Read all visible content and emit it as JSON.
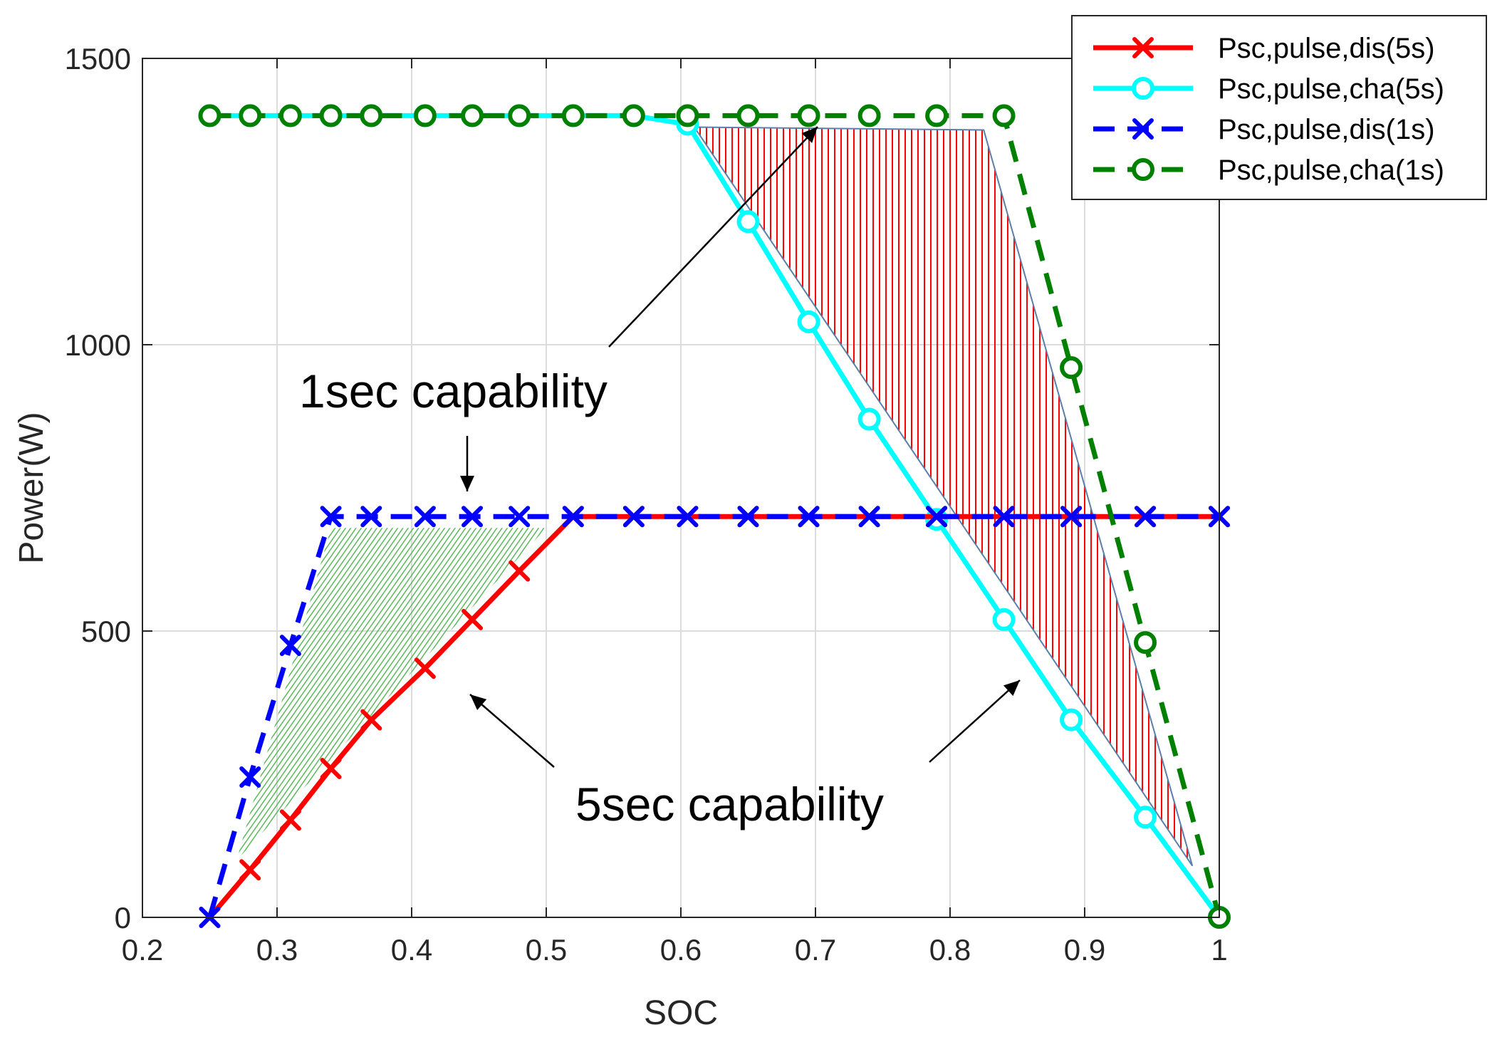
{
  "chart_data": {
    "type": "line",
    "xlabel": "SOC",
    "ylabel": "Power(W)",
    "xlim": [
      0.2,
      1.0
    ],
    "ylim": [
      0,
      1500
    ],
    "xticks": [
      0.2,
      0.3,
      0.4,
      0.5,
      0.6,
      0.7,
      0.8,
      0.9,
      1.0
    ],
    "xtick_labels": [
      "0.2",
      "0.3",
      "0.4",
      "0.5",
      "0.6",
      "0.7",
      "0.8",
      "0.9",
      "1"
    ],
    "yticks": [
      0,
      500,
      1000,
      1500
    ],
    "ytick_labels": [
      "0",
      "500",
      "1000",
      "1500"
    ],
    "grid": true,
    "legend_position": "top-right",
    "series": [
      {
        "name": "Psc,pulse,dis(5s)",
        "color": "#ff0000",
        "line_style": "solid",
        "marker": "x",
        "x": [
          0.25,
          0.28,
          0.31,
          0.34,
          0.37,
          0.41,
          0.445,
          0.48,
          0.52,
          0.565,
          0.605,
          0.65,
          0.695,
          0.74,
          0.79,
          0.84,
          0.89,
          0.945,
          1.0
        ],
        "y": [
          0,
          83,
          170,
          260,
          345,
          435,
          520,
          605,
          700,
          700,
          700,
          700,
          700,
          700,
          700,
          700,
          700,
          700,
          700
        ]
      },
      {
        "name": "Psc,pulse,cha(5s)",
        "color": "#00ffff",
        "line_style": "solid",
        "marker": "o",
        "x": [
          0.25,
          0.28,
          0.31,
          0.34,
          0.37,
          0.41,
          0.445,
          0.48,
          0.52,
          0.565,
          0.605,
          0.65,
          0.695,
          0.74,
          0.79,
          0.84,
          0.89,
          0.945,
          1.0
        ],
        "y": [
          1400,
          1400,
          1400,
          1400,
          1400,
          1400,
          1400,
          1400,
          1400,
          1400,
          1385,
          1215,
          1040,
          870,
          695,
          520,
          345,
          175,
          0
        ]
      },
      {
        "name": "Psc,pulse,dis(1s)",
        "color": "#0000ff",
        "line_style": "dashed",
        "marker": "x",
        "x": [
          0.25,
          0.28,
          0.31,
          0.34,
          0.37,
          0.41,
          0.445,
          0.48,
          0.52,
          0.565,
          0.605,
          0.65,
          0.695,
          0.74,
          0.79,
          0.84,
          0.89,
          0.945,
          1.0
        ],
        "y": [
          0,
          245,
          475,
          700,
          700,
          700,
          700,
          700,
          700,
          700,
          700,
          700,
          700,
          700,
          700,
          700,
          700,
          700,
          700
        ]
      },
      {
        "name": "Psc,pulse,cha(1s)",
        "color": "#008000",
        "line_style": "dashed",
        "marker": "o",
        "x": [
          0.25,
          0.28,
          0.31,
          0.34,
          0.37,
          0.41,
          0.445,
          0.48,
          0.52,
          0.565,
          0.605,
          0.65,
          0.695,
          0.74,
          0.79,
          0.84,
          0.89,
          0.945,
          1.0
        ],
        "y": [
          1400,
          1400,
          1400,
          1400,
          1400,
          1400,
          1400,
          1400,
          1400,
          1400,
          1400,
          1400,
          1400,
          1400,
          1400,
          1400,
          960,
          480,
          0
        ]
      }
    ],
    "annotations": [
      {
        "text": "1sec capability"
      },
      {
        "text": "5sec capability"
      }
    ],
    "shaded_regions": [
      {
        "color": "#5cb85c",
        "pattern": "diagonal-hatch",
        "polygon": [
          [
            0.34,
            680
          ],
          [
            0.5,
            680
          ],
          [
            0.27,
            100
          ]
        ]
      },
      {
        "color": "#ff0000",
        "pattern": "vertical-hatch",
        "polygon": [
          [
            0.61,
            1380
          ],
          [
            0.825,
            1375
          ],
          [
            0.98,
            90
          ]
        ]
      }
    ]
  }
}
